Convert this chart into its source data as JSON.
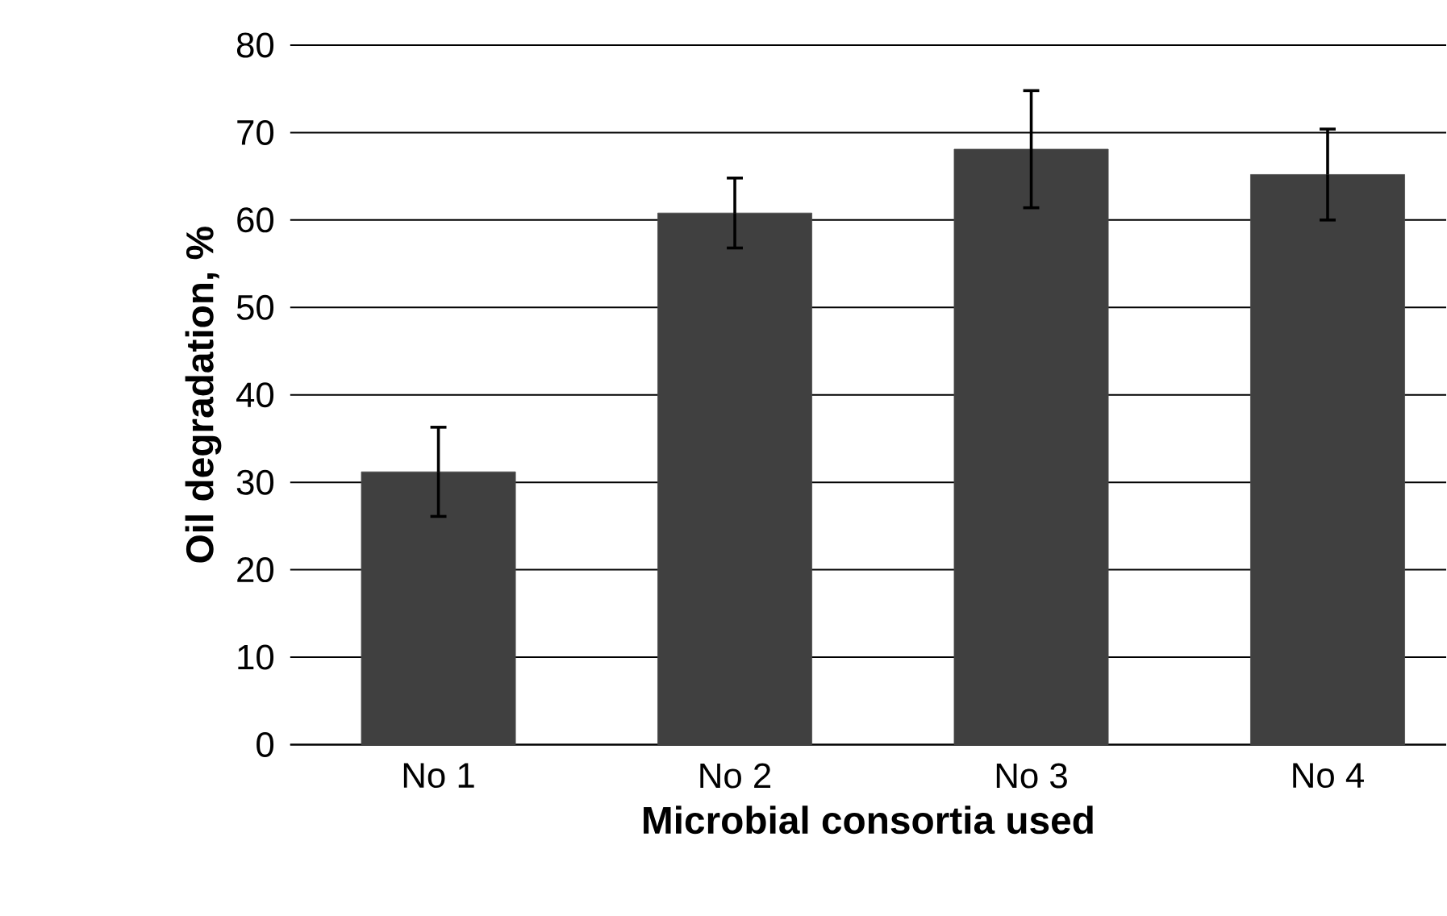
{
  "chart_data": {
    "type": "bar",
    "xlabel": "Microbial consortia used",
    "ylabel": "Oil degradation, %",
    "categories": [
      "No 1",
      "No 2",
      "No 3",
      "No 4"
    ],
    "values": [
      31.2,
      60.8,
      68.1,
      65.2
    ],
    "errors": [
      5.1,
      4,
      6.7,
      5.2
    ],
    "color": "#404040",
    "ylim": [
      0,
      80
    ],
    "yticks": [
      0,
      10,
      20,
      30,
      40,
      50,
      60,
      70,
      80
    ],
    "grid": "y"
  }
}
